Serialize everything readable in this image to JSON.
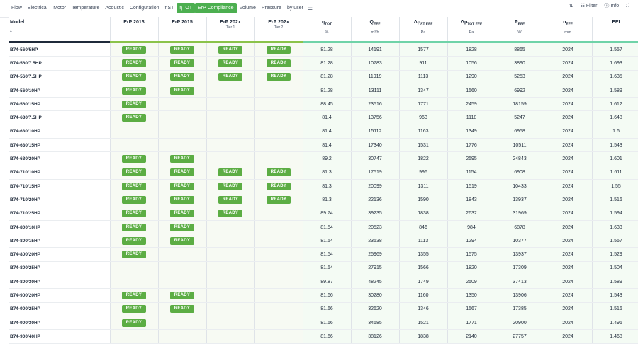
{
  "toolbar": {
    "tabs": [
      {
        "label": "Flow"
      },
      {
        "label": "Electrical"
      },
      {
        "label": "Motor"
      },
      {
        "label": "Temperature"
      },
      {
        "label": "Acoustic"
      },
      {
        "label": "Configuration"
      },
      {
        "label": "ηST"
      },
      {
        "label": "ηTOT"
      },
      {
        "label": "ErP Compliance"
      },
      {
        "label": "Volume"
      },
      {
        "label": "Pressure"
      },
      {
        "label": "by user"
      }
    ],
    "active_tabs": [
      "ηTOT",
      "ErP Compliance"
    ],
    "sort_icon": "sort-arrows-icon",
    "filter_label": "Filter",
    "info_label": "Info",
    "expand_icon": "expand-icon"
  },
  "table": {
    "headers": {
      "model": "Model",
      "model_sub": "x",
      "erp2013": "ErP 2013",
      "erp2015": "ErP 2015",
      "erp202x1": "ErP 202x",
      "erp202x1_tier": "Tier 1",
      "erp202x2": "ErP 202x",
      "erp202x2_tier": "Tier 2",
      "eta_main": "η",
      "eta_sub": "TOT",
      "eta_unit": "%",
      "q_main": "Q",
      "q_sub": "EFF",
      "q_unit": "m³/h",
      "pst_main": "Δp",
      "pst_sub": "ST EFF",
      "pst_unit": "Pa",
      "ptot_main": "Δp",
      "ptot_sub": "TOT EFF",
      "ptot_unit": "Pa",
      "p_main": "P",
      "p_sub": "EFF",
      "p_unit": "W",
      "n_main": "n",
      "n_sub": "EFF",
      "n_unit": "rpm",
      "fei": "FEI"
    },
    "badge_label": "READY",
    "rows": [
      {
        "model": "B74-560/5HP",
        "e13": true,
        "e15": true,
        "t1": true,
        "t2": true,
        "eta": "81.28",
        "q": "14191",
        "pst": "1577",
        "ptot": "1828",
        "p": "8865",
        "n": "2024",
        "fei": "1.557"
      },
      {
        "model": "B74-560/7.5HP",
        "e13": true,
        "e15": true,
        "t1": true,
        "t2": true,
        "eta": "81.28",
        "q": "10783",
        "pst": "911",
        "ptot": "1056",
        "p": "3890",
        "n": "2024",
        "fei": "1.693"
      },
      {
        "model": "B74-560/7.5HP",
        "e13": true,
        "e15": true,
        "t1": true,
        "t2": true,
        "eta": "81.28",
        "q": "11919",
        "pst": "1113",
        "ptot": "1290",
        "p": "5253",
        "n": "2024",
        "fei": "1.635"
      },
      {
        "model": "B74-560/10HP",
        "e13": true,
        "e15": true,
        "t1": false,
        "t2": false,
        "eta": "81.28",
        "q": "13111",
        "pst": "1347",
        "ptot": "1560",
        "p": "6992",
        "n": "2024",
        "fei": "1.589"
      },
      {
        "model": "B74-560/15HP",
        "e13": true,
        "e15": false,
        "t1": false,
        "t2": false,
        "eta": "88.45",
        "q": "23516",
        "pst": "1771",
        "ptot": "2459",
        "p": "18159",
        "n": "2024",
        "fei": "1.612"
      },
      {
        "model": "B74-630/7.5HP",
        "e13": true,
        "e15": false,
        "t1": false,
        "t2": false,
        "eta": "81.4",
        "q": "13756",
        "pst": "963",
        "ptot": "1118",
        "p": "5247",
        "n": "2024",
        "fei": "1.648"
      },
      {
        "model": "B74-630/10HP",
        "e13": false,
        "e15": false,
        "t1": false,
        "t2": false,
        "eta": "81.4",
        "q": "15112",
        "pst": "1163",
        "ptot": "1349",
        "p": "6958",
        "n": "2024",
        "fei": "1.6"
      },
      {
        "model": "B74-630/15HP",
        "e13": false,
        "e15": false,
        "t1": false,
        "t2": false,
        "eta": "81.4",
        "q": "17340",
        "pst": "1531",
        "ptot": "1776",
        "p": "10511",
        "n": "2024",
        "fei": "1.543"
      },
      {
        "model": "B74-630/20HP",
        "e13": true,
        "e15": true,
        "t1": false,
        "t2": false,
        "eta": "89.2",
        "q": "30747",
        "pst": "1822",
        "ptot": "2595",
        "p": "24843",
        "n": "2024",
        "fei": "1.601"
      },
      {
        "model": "B74-710/10HP",
        "e13": true,
        "e15": true,
        "t1": true,
        "t2": true,
        "eta": "81.3",
        "q": "17519",
        "pst": "996",
        "ptot": "1154",
        "p": "6908",
        "n": "2024",
        "fei": "1.611"
      },
      {
        "model": "B74-710/15HP",
        "e13": true,
        "e15": true,
        "t1": true,
        "t2": true,
        "eta": "81.3",
        "q": "20099",
        "pst": "1311",
        "ptot": "1519",
        "p": "10433",
        "n": "2024",
        "fei": "1.55"
      },
      {
        "model": "B74-710/20HP",
        "e13": true,
        "e15": true,
        "t1": true,
        "t2": true,
        "eta": "81.3",
        "q": "22136",
        "pst": "1590",
        "ptot": "1843",
        "p": "13937",
        "n": "2024",
        "fei": "1.516"
      },
      {
        "model": "B74-710/25HP",
        "e13": true,
        "e15": true,
        "t1": true,
        "t2": false,
        "eta": "89.74",
        "q": "39235",
        "pst": "1838",
        "ptot": "2632",
        "p": "31969",
        "n": "2024",
        "fei": "1.594"
      },
      {
        "model": "B74-800/10HP",
        "e13": true,
        "e15": true,
        "t1": false,
        "t2": false,
        "eta": "81.54",
        "q": "20523",
        "pst": "846",
        "ptot": "984",
        "p": "6878",
        "n": "2024",
        "fei": "1.633"
      },
      {
        "model": "B74-800/15HP",
        "e13": true,
        "e15": true,
        "t1": false,
        "t2": false,
        "eta": "81.54",
        "q": "23538",
        "pst": "1113",
        "ptot": "1294",
        "p": "10377",
        "n": "2024",
        "fei": "1.567"
      },
      {
        "model": "B74-800/20HP",
        "e13": true,
        "e15": false,
        "t1": false,
        "t2": false,
        "eta": "81.54",
        "q": "25969",
        "pst": "1355",
        "ptot": "1575",
        "p": "13937",
        "n": "2024",
        "fei": "1.529"
      },
      {
        "model": "B74-800/25HP",
        "e13": false,
        "e15": false,
        "t1": false,
        "t2": false,
        "eta": "81.54",
        "q": "27915",
        "pst": "1566",
        "ptot": "1820",
        "p": "17309",
        "n": "2024",
        "fei": "1.504"
      },
      {
        "model": "B74-800/30HP",
        "e13": false,
        "e15": false,
        "t1": false,
        "t2": false,
        "eta": "89.87",
        "q": "48245",
        "pst": "1749",
        "ptot": "2509",
        "p": "37413",
        "n": "2024",
        "fei": "1.589"
      },
      {
        "model": "B74-900/20HP",
        "e13": true,
        "e15": true,
        "t1": false,
        "t2": false,
        "eta": "81.66",
        "q": "30280",
        "pst": "1160",
        "ptot": "1350",
        "p": "13906",
        "n": "2024",
        "fei": "1.543"
      },
      {
        "model": "B74-900/25HP",
        "e13": true,
        "e15": true,
        "t1": false,
        "t2": false,
        "eta": "81.66",
        "q": "32620",
        "pst": "1346",
        "ptot": "1567",
        "p": "17385",
        "n": "2024",
        "fei": "1.516"
      },
      {
        "model": "B74-900/30HP",
        "e13": true,
        "e15": false,
        "t1": false,
        "t2": false,
        "eta": "81.66",
        "q": "34685",
        "pst": "1521",
        "ptot": "1771",
        "p": "20900",
        "n": "2024",
        "fei": "1.496"
      },
      {
        "model": "B74-900/40HP",
        "e13": false,
        "e15": false,
        "t1": false,
        "t2": false,
        "eta": "81.66",
        "q": "38126",
        "pst": "1838",
        "ptot": "2140",
        "p": "27757",
        "n": "2024",
        "fei": "1.468"
      }
    ]
  },
  "colors": {
    "badge": "#5cad44",
    "active_tab": "#4caf50",
    "header_rule": "#1f2a3a",
    "erp_rule": "#8bc34a",
    "data_rule": "#6fd3a8"
  }
}
